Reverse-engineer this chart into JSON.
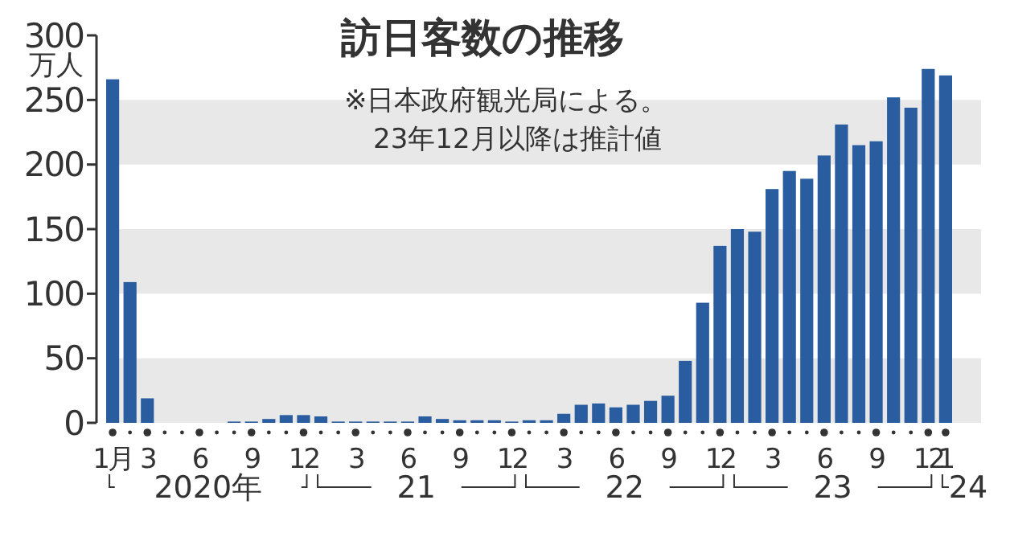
{
  "chart_data": {
    "type": "bar",
    "title": "訪日客数の推移",
    "subtitle": "※日本政府観光局による。",
    "ylabel": "万人",
    "annotations": [
      "23年12月以降は推計値",
      "2020年",
      "21",
      "22",
      "23",
      "24"
    ],
    "categories": [
      "1月",
      null,
      "3",
      null,
      null,
      "6",
      null,
      null,
      "9",
      null,
      null,
      "12",
      null,
      null,
      "3",
      null,
      null,
      "6",
      null,
      null,
      "9",
      null,
      null,
      "12",
      null,
      null,
      "3",
      null,
      null,
      "6",
      null,
      null,
      "9",
      null,
      null,
      "12",
      null,
      null,
      "3",
      null,
      null,
      "6",
      null,
      null,
      "9",
      null,
      null,
      "12",
      "1"
    ],
    "values": [
      266,
      109,
      19,
      0,
      0,
      0,
      0,
      1,
      1,
      3,
      6,
      6,
      5,
      1,
      1,
      1,
      1,
      1,
      5,
      3,
      2,
      2,
      2,
      1,
      2,
      2,
      7,
      14,
      15,
      12,
      14,
      17,
      21,
      48,
      93,
      137,
      150,
      148,
      181,
      195,
      189,
      207,
      231,
      215,
      218,
      252,
      244,
      274,
      269
    ],
    "color": "#2a5d9f",
    "ylim": [
      0,
      300
    ],
    "yticks": [
      0,
      50,
      100,
      150,
      200,
      250,
      300
    ],
    "bands": [
      {
        "axis": "y",
        "from": 0,
        "to": 50,
        "color": "#e8e8e8"
      },
      {
        "axis": "y",
        "from": 100,
        "to": 150,
        "color": "#e8e8e8"
      },
      {
        "axis": "y",
        "from": 200,
        "to": 250,
        "color": "#e8e8e8"
      }
    ]
  }
}
